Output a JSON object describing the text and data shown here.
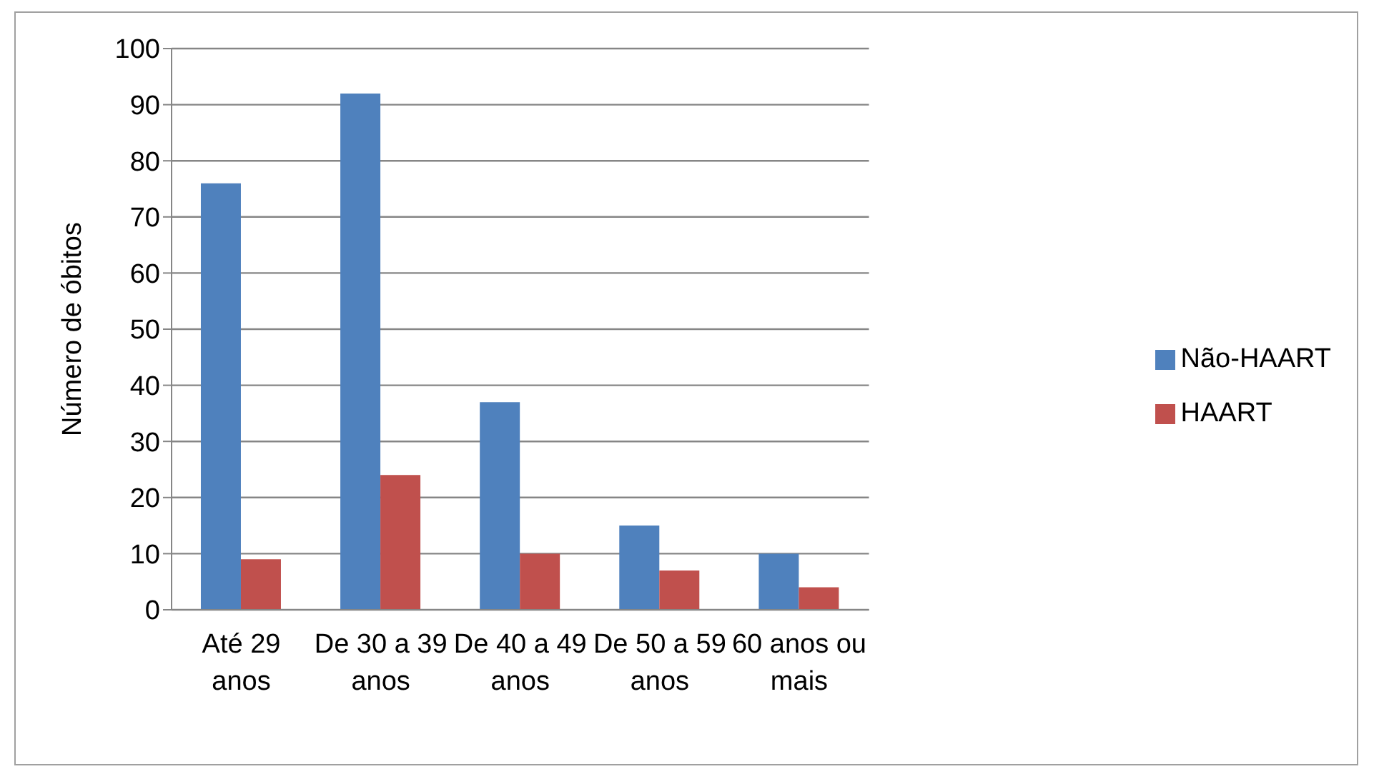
{
  "chart_data": {
    "type": "bar",
    "ylabel": "Número de óbitos",
    "categories": [
      "Até 29 anos",
      "De 30 a 39 anos",
      "De 40 a 49 anos",
      "De 50 a 59 anos",
      "60 anos ou mais"
    ],
    "series": [
      {
        "name": "Não-HAART",
        "color": "#4f81bd",
        "values": [
          76,
          92,
          37,
          15,
          10
        ]
      },
      {
        "name": "HAART",
        "color": "#c0504d",
        "values": [
          9,
          24,
          10,
          7,
          4
        ]
      }
    ],
    "ylim": [
      0,
      100
    ],
    "yticks": [
      0,
      10,
      20,
      30,
      40,
      50,
      60,
      70,
      80,
      90,
      100
    ],
    "grid": "y",
    "legend": "right"
  }
}
